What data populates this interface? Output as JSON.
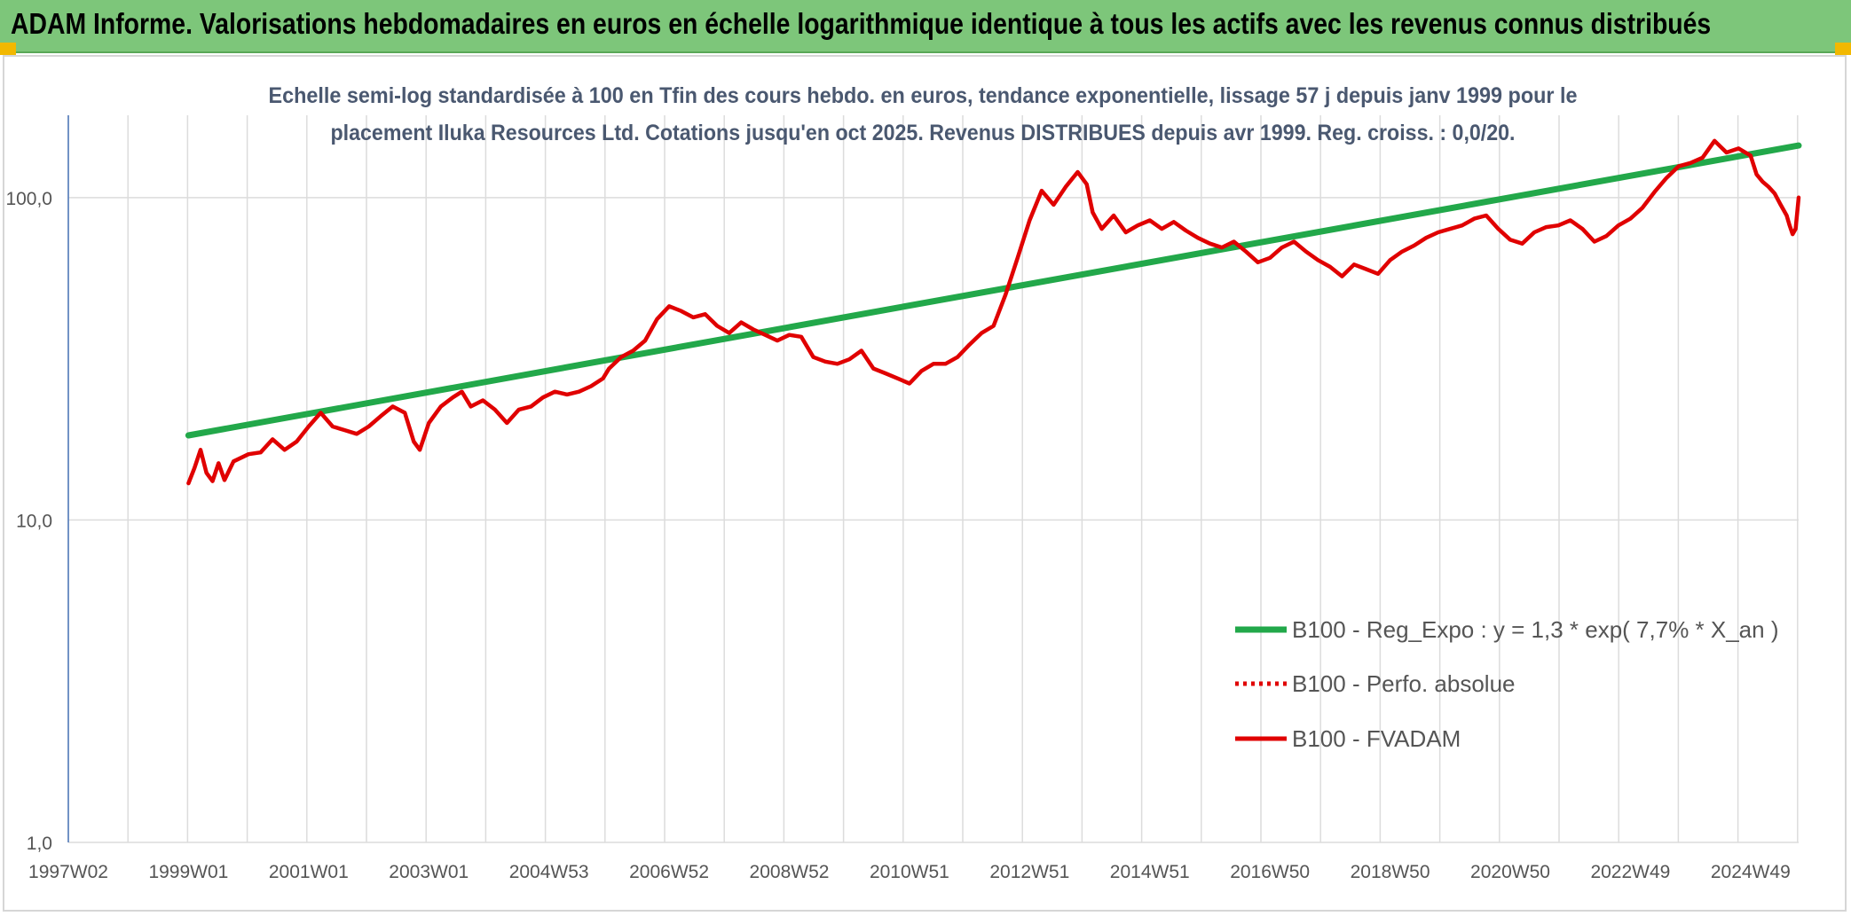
{
  "header": {
    "title": "ADAM Informe. Valorisations hebdomadaires en euros en échelle logarithmique identique à tous les actifs avec les revenus connus distribués",
    "background_color": "#7dc67a",
    "corner_color": "#f2b800"
  },
  "chart_data": {
    "type": "line",
    "title": "Echelle semi-log standardisée à 100 en Tfin des cours hebdo. en euros, tendance exponentielle, lissage 57 j depuis janv 1999 pour le placement Iluka Resources Ltd. Cotations jusqu'en oct 2025. Revenus DISTRIBUES depuis avr 1999. Reg. croiss. : 0,0/20.",
    "title_lines": [
      "Echelle semi-log standardisée à 100 en Tfin des cours hebdo. en euros, tendance exponentielle, lissage 57 j depuis janv 1999 pour le",
      "placement Iluka Resources Ltd. Cotations jusqu'en oct 2025. Revenus DISTRIBUES depuis avr 1999. Reg. croiss. : 0,0/20."
    ],
    "y_scale": "log",
    "ylim": [
      1,
      180
    ],
    "y_ticks": [
      {
        "value": 1,
        "label": "1,0"
      },
      {
        "value": 10,
        "label": "10,0"
      },
      {
        "value": 100,
        "label": "100,0"
      }
    ],
    "x_range": [
      1997.0,
      2025.8
    ],
    "x_ticks": [
      {
        "x": 1997.0,
        "label": "1997W02"
      },
      {
        "x": 1999.0,
        "label": "1999W01"
      },
      {
        "x": 2001.0,
        "label": "2001W01"
      },
      {
        "x": 2003.0,
        "label": "2003W01"
      },
      {
        "x": 2005.0,
        "label": "2004W53"
      },
      {
        "x": 2007.0,
        "label": "2006W52"
      },
      {
        "x": 2009.0,
        "label": "2008W52"
      },
      {
        "x": 2011.0,
        "label": "2010W51"
      },
      {
        "x": 2013.0,
        "label": "2012W51"
      },
      {
        "x": 2015.0,
        "label": "2014W51"
      },
      {
        "x": 2017.0,
        "label": "2016W50"
      },
      {
        "x": 2019.0,
        "label": "2018W50"
      },
      {
        "x": 2021.0,
        "label": "2020W50"
      },
      {
        "x": 2023.0,
        "label": "2022W49"
      },
      {
        "x": 2025.0,
        "label": "2024W49"
      }
    ],
    "grid": {
      "vertical": true,
      "horizontal": true,
      "color": "#dcdcdc"
    },
    "legend_position": "bottom-right",
    "series": [
      {
        "name": "B100 - Reg_Expo : y = 1,3 * exp( 7,7% *  X_an )",
        "color": "#22a84a",
        "style": "solid",
        "points": [
          [
            1999.0,
            18.3
          ],
          [
            2025.8,
            145.0
          ]
        ]
      },
      {
        "name": "B100 - Perfo. absolue",
        "color": "#e00000",
        "style": "dotted",
        "points": []
      },
      {
        "name": "B100 - FVADAM",
        "color": "#e00000",
        "style": "solid",
        "points": [
          [
            1999.0,
            13.0
          ],
          [
            1999.1,
            14.5
          ],
          [
            1999.2,
            16.5
          ],
          [
            1999.3,
            14.0
          ],
          [
            1999.4,
            13.2
          ],
          [
            1999.5,
            15.0
          ],
          [
            1999.6,
            13.3
          ],
          [
            1999.75,
            15.2
          ],
          [
            2000.0,
            16.0
          ],
          [
            2000.2,
            16.2
          ],
          [
            2000.4,
            17.8
          ],
          [
            2000.6,
            16.5
          ],
          [
            2000.8,
            17.5
          ],
          [
            2001.0,
            19.5
          ],
          [
            2001.2,
            21.5
          ],
          [
            2001.4,
            19.5
          ],
          [
            2001.6,
            19.0
          ],
          [
            2001.8,
            18.5
          ],
          [
            2002.0,
            19.5
          ],
          [
            2002.2,
            21.0
          ],
          [
            2002.4,
            22.5
          ],
          [
            2002.6,
            21.5
          ],
          [
            2002.75,
            17.5
          ],
          [
            2002.85,
            16.5
          ],
          [
            2003.0,
            20.0
          ],
          [
            2003.2,
            22.5
          ],
          [
            2003.4,
            24.0
          ],
          [
            2003.55,
            25.0
          ],
          [
            2003.7,
            22.5
          ],
          [
            2003.9,
            23.5
          ],
          [
            2004.1,
            22.0
          ],
          [
            2004.3,
            20.0
          ],
          [
            2004.5,
            22.0
          ],
          [
            2004.7,
            22.5
          ],
          [
            2004.9,
            24.0
          ],
          [
            2005.1,
            25.0
          ],
          [
            2005.3,
            24.5
          ],
          [
            2005.5,
            25.0
          ],
          [
            2005.7,
            26.0
          ],
          [
            2005.9,
            27.5
          ],
          [
            2006.0,
            29.5
          ],
          [
            2006.2,
            32.0
          ],
          [
            2006.4,
            33.5
          ],
          [
            2006.6,
            36.0
          ],
          [
            2006.8,
            42.0
          ],
          [
            2007.0,
            46.0
          ],
          [
            2007.2,
            44.5
          ],
          [
            2007.4,
            42.5
          ],
          [
            2007.6,
            43.5
          ],
          [
            2007.8,
            40.0
          ],
          [
            2008.0,
            38.0
          ],
          [
            2008.2,
            41.0
          ],
          [
            2008.4,
            39.0
          ],
          [
            2008.6,
            37.5
          ],
          [
            2008.8,
            36.0
          ],
          [
            2009.0,
            37.5
          ],
          [
            2009.2,
            37.0
          ],
          [
            2009.4,
            32.0
          ],
          [
            2009.6,
            31.0
          ],
          [
            2009.8,
            30.5
          ],
          [
            2010.0,
            31.5
          ],
          [
            2010.2,
            33.5
          ],
          [
            2010.4,
            29.5
          ],
          [
            2010.6,
            28.5
          ],
          [
            2010.8,
            27.5
          ],
          [
            2011.0,
            26.5
          ],
          [
            2011.2,
            29.0
          ],
          [
            2011.4,
            30.5
          ],
          [
            2011.6,
            30.5
          ],
          [
            2011.8,
            32.0
          ],
          [
            2012.0,
            35.0
          ],
          [
            2012.2,
            38.0
          ],
          [
            2012.4,
            40.0
          ],
          [
            2012.6,
            50.0
          ],
          [
            2012.8,
            65.0
          ],
          [
            2013.0,
            85.0
          ],
          [
            2013.2,
            105.0
          ],
          [
            2013.4,
            95.0
          ],
          [
            2013.6,
            108.0
          ],
          [
            2013.8,
            120.0
          ],
          [
            2013.95,
            110.0
          ],
          [
            2014.05,
            90.0
          ],
          [
            2014.2,
            80.0
          ],
          [
            2014.4,
            88.0
          ],
          [
            2014.6,
            78.0
          ],
          [
            2014.8,
            82.0
          ],
          [
            2015.0,
            85.0
          ],
          [
            2015.2,
            80.0
          ],
          [
            2015.4,
            84.0
          ],
          [
            2015.6,
            79.0
          ],
          [
            2015.8,
            75.0
          ],
          [
            2016.0,
            72.0
          ],
          [
            2016.2,
            70.0
          ],
          [
            2016.4,
            73.0
          ],
          [
            2016.6,
            68.0
          ],
          [
            2016.8,
            63.0
          ],
          [
            2017.0,
            65.0
          ],
          [
            2017.2,
            70.0
          ],
          [
            2017.4,
            73.0
          ],
          [
            2017.6,
            68.0
          ],
          [
            2017.8,
            64.0
          ],
          [
            2018.0,
            61.0
          ],
          [
            2018.2,
            57.0
          ],
          [
            2018.4,
            62.0
          ],
          [
            2018.6,
            60.0
          ],
          [
            2018.8,
            58.0
          ],
          [
            2019.0,
            64.0
          ],
          [
            2019.2,
            68.0
          ],
          [
            2019.4,
            71.0
          ],
          [
            2019.6,
            75.0
          ],
          [
            2019.8,
            78.0
          ],
          [
            2020.0,
            80.0
          ],
          [
            2020.2,
            82.0
          ],
          [
            2020.4,
            86.0
          ],
          [
            2020.6,
            88.0
          ],
          [
            2020.8,
            80.0
          ],
          [
            2021.0,
            74.0
          ],
          [
            2021.2,
            72.0
          ],
          [
            2021.4,
            78.0
          ],
          [
            2021.6,
            81.0
          ],
          [
            2021.8,
            82.0
          ],
          [
            2022.0,
            85.0
          ],
          [
            2022.2,
            80.0
          ],
          [
            2022.4,
            73.0
          ],
          [
            2022.6,
            76.0
          ],
          [
            2022.8,
            82.0
          ],
          [
            2023.0,
            86.0
          ],
          [
            2023.2,
            93.0
          ],
          [
            2023.4,
            104.0
          ],
          [
            2023.6,
            115.0
          ],
          [
            2023.8,
            125.0
          ],
          [
            2024.0,
            128.0
          ],
          [
            2024.2,
            133.0
          ],
          [
            2024.4,
            150.0
          ],
          [
            2024.6,
            138.0
          ],
          [
            2024.8,
            142.0
          ],
          [
            2025.0,
            135.0
          ],
          [
            2025.1,
            118.0
          ],
          [
            2025.2,
            112.0
          ],
          [
            2025.3,
            108.0
          ],
          [
            2025.4,
            103.0
          ],
          [
            2025.5,
            95.0
          ],
          [
            2025.6,
            88.0
          ],
          [
            2025.65,
            82.0
          ],
          [
            2025.7,
            77.0
          ],
          [
            2025.75,
            80.0
          ],
          [
            2025.8,
            100.0
          ]
        ]
      }
    ]
  }
}
